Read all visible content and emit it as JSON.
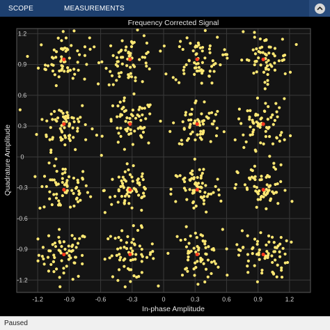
{
  "toolbar": {
    "tabs": [
      "SCOPE",
      "MEASUREMENTS"
    ],
    "help_icon": "chevron-up-icon"
  },
  "status": {
    "text": "Paused"
  },
  "chart_data": {
    "type": "scatter",
    "title": "Frequency Corrected Signal",
    "xlabel": "In-phase Amplitude",
    "ylabel": "Quadrature Amplitude",
    "xlim": [
      -1.4,
      1.4
    ],
    "ylim": [
      -1.32,
      1.25
    ],
    "xticks": [
      -1.2,
      -0.9,
      -0.6,
      -0.3,
      0,
      0.3,
      0.6,
      0.9,
      1.2
    ],
    "xtick_labels": [
      "-1.2",
      "-0.9",
      "-0.6",
      "-0.3",
      "0",
      "0.3",
      "0.6",
      "0.9",
      "1.2"
    ],
    "yticks": [
      -1.2,
      -0.9,
      -0.6,
      -0.3,
      0,
      0.3,
      0.6,
      0.9,
      1.2
    ],
    "ytick_labels": [
      "-1.2",
      "-0.9",
      "-0.6",
      "-0.3",
      "0",
      "0.3",
      "0.6",
      "0.9",
      "1.2"
    ],
    "grid": true,
    "series": [
      {
        "kind": "received-symbols",
        "color": "#ffe873",
        "constellation_levels": [
          -0.95,
          -0.32,
          0.32,
          0.95
        ],
        "spread_std": 0.12,
        "points_per_cluster": 64
      },
      {
        "kind": "reference-constellation",
        "color": "#ff3b1f",
        "points": [
          [
            -0.95,
            -0.95
          ],
          [
            -0.95,
            -0.32
          ],
          [
            -0.95,
            0.32
          ],
          [
            -0.95,
            0.95
          ],
          [
            -0.32,
            -0.95
          ],
          [
            -0.32,
            -0.32
          ],
          [
            -0.32,
            0.32
          ],
          [
            -0.32,
            0.95
          ],
          [
            0.32,
            -0.95
          ],
          [
            0.32,
            -0.32
          ],
          [
            0.32,
            0.32
          ],
          [
            0.32,
            0.95
          ],
          [
            0.95,
            -0.95
          ],
          [
            0.95,
            -0.32
          ],
          [
            0.95,
            0.32
          ],
          [
            0.95,
            0.95
          ]
        ]
      }
    ],
    "colors": {
      "axes_background": "#141414",
      "figure_background": "#000000",
      "grid": "#3a3a3a",
      "axis_text": "#d0d0d0",
      "title_text": "#e6e6e6"
    }
  }
}
